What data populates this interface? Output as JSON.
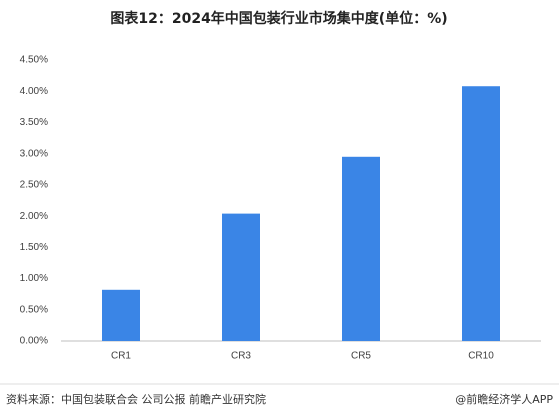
{
  "chart_data": {
    "type": "bar",
    "title": "图表12：2024年中国包装行业市场集中度(单位：%)",
    "categories": [
      "CR1",
      "CR3",
      "CR5",
      "CR10"
    ],
    "values": [
      0.82,
      2.04,
      2.95,
      4.08
    ],
    "color": "#3a85e6",
    "ylim": [
      0,
      4.5
    ],
    "yticks": [
      {
        "value": 0,
        "label": "0.00%"
      },
      {
        "value": 0.5,
        "label": "0.50%"
      },
      {
        "value": 1,
        "label": "1.00%"
      },
      {
        "value": 1.5,
        "label": "1.50%"
      },
      {
        "value": 2,
        "label": "2.00%"
      },
      {
        "value": 2.5,
        "label": "2.50%"
      },
      {
        "value": 3,
        "label": "3.00%"
      },
      {
        "value": 3.5,
        "label": "3.50%"
      },
      {
        "value": 4,
        "label": "4.00%"
      },
      {
        "value": 4.5,
        "label": "4.50%"
      }
    ],
    "grid": false,
    "source": "资料来源：中国包装联合会 公司公报 前瞻产业研究院",
    "credit": "@前瞻经济学人APP"
  }
}
